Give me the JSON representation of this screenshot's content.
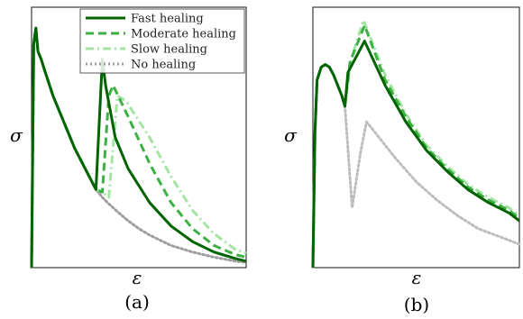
{
  "chart_data": [
    {
      "type": "line",
      "panel_label": "(a)",
      "xlabel": "ε",
      "ylabel": "σ",
      "xlim": [
        0,
        1
      ],
      "ylim": [
        0,
        1
      ],
      "legend": {
        "placement": "top-right"
      },
      "series": [
        {
          "name": "Fast healing",
          "color": "#006400",
          "style": "solid",
          "x": [
            0.0,
            0.01,
            0.02,
            0.03,
            0.045,
            0.06,
            0.1,
            0.15,
            0.2,
            0.25,
            0.3,
            0.33,
            0.345,
            0.39,
            0.45,
            0.55,
            0.65,
            0.75,
            0.85,
            0.95,
            1.0
          ],
          "y": [
            0.0,
            0.86,
            0.92,
            0.83,
            0.8,
            0.76,
            0.66,
            0.56,
            0.46,
            0.38,
            0.3,
            0.8,
            0.7,
            0.5,
            0.38,
            0.25,
            0.16,
            0.1,
            0.06,
            0.035,
            0.025
          ]
        },
        {
          "name": "Moderate healing",
          "color": "#3cb043",
          "style": "dashed",
          "x": [
            0.0,
            0.01,
            0.02,
            0.03,
            0.045,
            0.06,
            0.1,
            0.15,
            0.2,
            0.25,
            0.3,
            0.33,
            0.36,
            0.38,
            0.45,
            0.55,
            0.65,
            0.75,
            0.85,
            0.95,
            1.0
          ],
          "y": [
            0.0,
            0.86,
            0.92,
            0.83,
            0.8,
            0.76,
            0.66,
            0.56,
            0.46,
            0.38,
            0.3,
            0.29,
            0.66,
            0.7,
            0.58,
            0.4,
            0.25,
            0.15,
            0.085,
            0.05,
            0.04
          ]
        },
        {
          "name": "Slow healing",
          "color": "#a3e4a3",
          "style": "dashdot",
          "x": [
            0.0,
            0.01,
            0.02,
            0.03,
            0.045,
            0.06,
            0.1,
            0.15,
            0.2,
            0.25,
            0.3,
            0.33,
            0.36,
            0.4,
            0.44,
            0.55,
            0.65,
            0.75,
            0.85,
            0.95,
            1.0
          ],
          "y": [
            0.0,
            0.86,
            0.92,
            0.83,
            0.8,
            0.76,
            0.66,
            0.56,
            0.46,
            0.38,
            0.3,
            0.29,
            0.27,
            0.66,
            0.64,
            0.5,
            0.35,
            0.22,
            0.13,
            0.07,
            0.055
          ]
        },
        {
          "name": "No healing",
          "color": "#9e9e9e",
          "style": "dotted",
          "x": [
            0.0,
            0.01,
            0.02,
            0.03,
            0.045,
            0.06,
            0.1,
            0.15,
            0.2,
            0.25,
            0.3,
            0.33,
            0.36,
            0.4,
            0.45,
            0.5,
            0.55,
            0.65,
            0.75,
            0.85,
            0.95,
            1.0
          ],
          "y": [
            0.0,
            0.86,
            0.92,
            0.83,
            0.8,
            0.76,
            0.66,
            0.56,
            0.46,
            0.38,
            0.3,
            0.27,
            0.245,
            0.215,
            0.18,
            0.15,
            0.125,
            0.085,
            0.06,
            0.04,
            0.025,
            0.02
          ]
        }
      ]
    },
    {
      "type": "line",
      "panel_label": "(b)",
      "xlabel": "ε",
      "ylabel": "σ",
      "xlim": [
        0,
        1
      ],
      "ylim": [
        0,
        1
      ],
      "series": [
        {
          "name": "Fast healing",
          "color": "#006400",
          "style": "solid",
          "x": [
            0.0,
            0.01,
            0.02,
            0.04,
            0.06,
            0.08,
            0.1,
            0.12,
            0.14,
            0.155,
            0.17,
            0.25,
            0.35,
            0.45,
            0.55,
            0.65,
            0.75,
            0.85,
            0.95,
            1.0
          ],
          "y": [
            0.0,
            0.52,
            0.72,
            0.77,
            0.78,
            0.77,
            0.74,
            0.7,
            0.66,
            0.62,
            0.75,
            0.87,
            0.7,
            0.56,
            0.45,
            0.37,
            0.3,
            0.25,
            0.21,
            0.18
          ]
        },
        {
          "name": "Moderate healing",
          "color": "#3cb043",
          "style": "dashed",
          "x": [
            0.0,
            0.01,
            0.02,
            0.04,
            0.06,
            0.08,
            0.1,
            0.12,
            0.14,
            0.155,
            0.18,
            0.25,
            0.35,
            0.45,
            0.55,
            0.65,
            0.75,
            0.85,
            0.95,
            1.0
          ],
          "y": [
            0.0,
            0.52,
            0.72,
            0.77,
            0.78,
            0.77,
            0.74,
            0.7,
            0.66,
            0.62,
            0.79,
            0.93,
            0.72,
            0.58,
            0.46,
            0.38,
            0.31,
            0.26,
            0.22,
            0.19
          ]
        },
        {
          "name": "Slow healing",
          "color": "#a3e4a3",
          "style": "dashdot",
          "x": [
            0.0,
            0.01,
            0.02,
            0.04,
            0.06,
            0.08,
            0.1,
            0.12,
            0.14,
            0.155,
            0.185,
            0.245,
            0.35,
            0.45,
            0.55,
            0.65,
            0.75,
            0.85,
            0.95,
            1.0
          ],
          "y": [
            0.0,
            0.52,
            0.72,
            0.77,
            0.78,
            0.77,
            0.74,
            0.7,
            0.66,
            0.62,
            0.8,
            0.95,
            0.74,
            0.59,
            0.47,
            0.39,
            0.32,
            0.27,
            0.23,
            0.2
          ]
        },
        {
          "name": "No healing",
          "color": "#bdbdbd",
          "style": "dotted",
          "x": [
            0.0,
            0.01,
            0.02,
            0.04,
            0.06,
            0.08,
            0.1,
            0.12,
            0.14,
            0.155,
            0.19,
            0.23,
            0.26,
            0.3,
            0.4,
            0.5,
            0.6,
            0.7,
            0.8,
            0.9,
            1.0
          ],
          "y": [
            0.0,
            0.52,
            0.72,
            0.77,
            0.78,
            0.77,
            0.74,
            0.7,
            0.66,
            0.62,
            0.23,
            0.44,
            0.56,
            0.52,
            0.42,
            0.33,
            0.26,
            0.2,
            0.15,
            0.12,
            0.09
          ]
        }
      ]
    }
  ]
}
